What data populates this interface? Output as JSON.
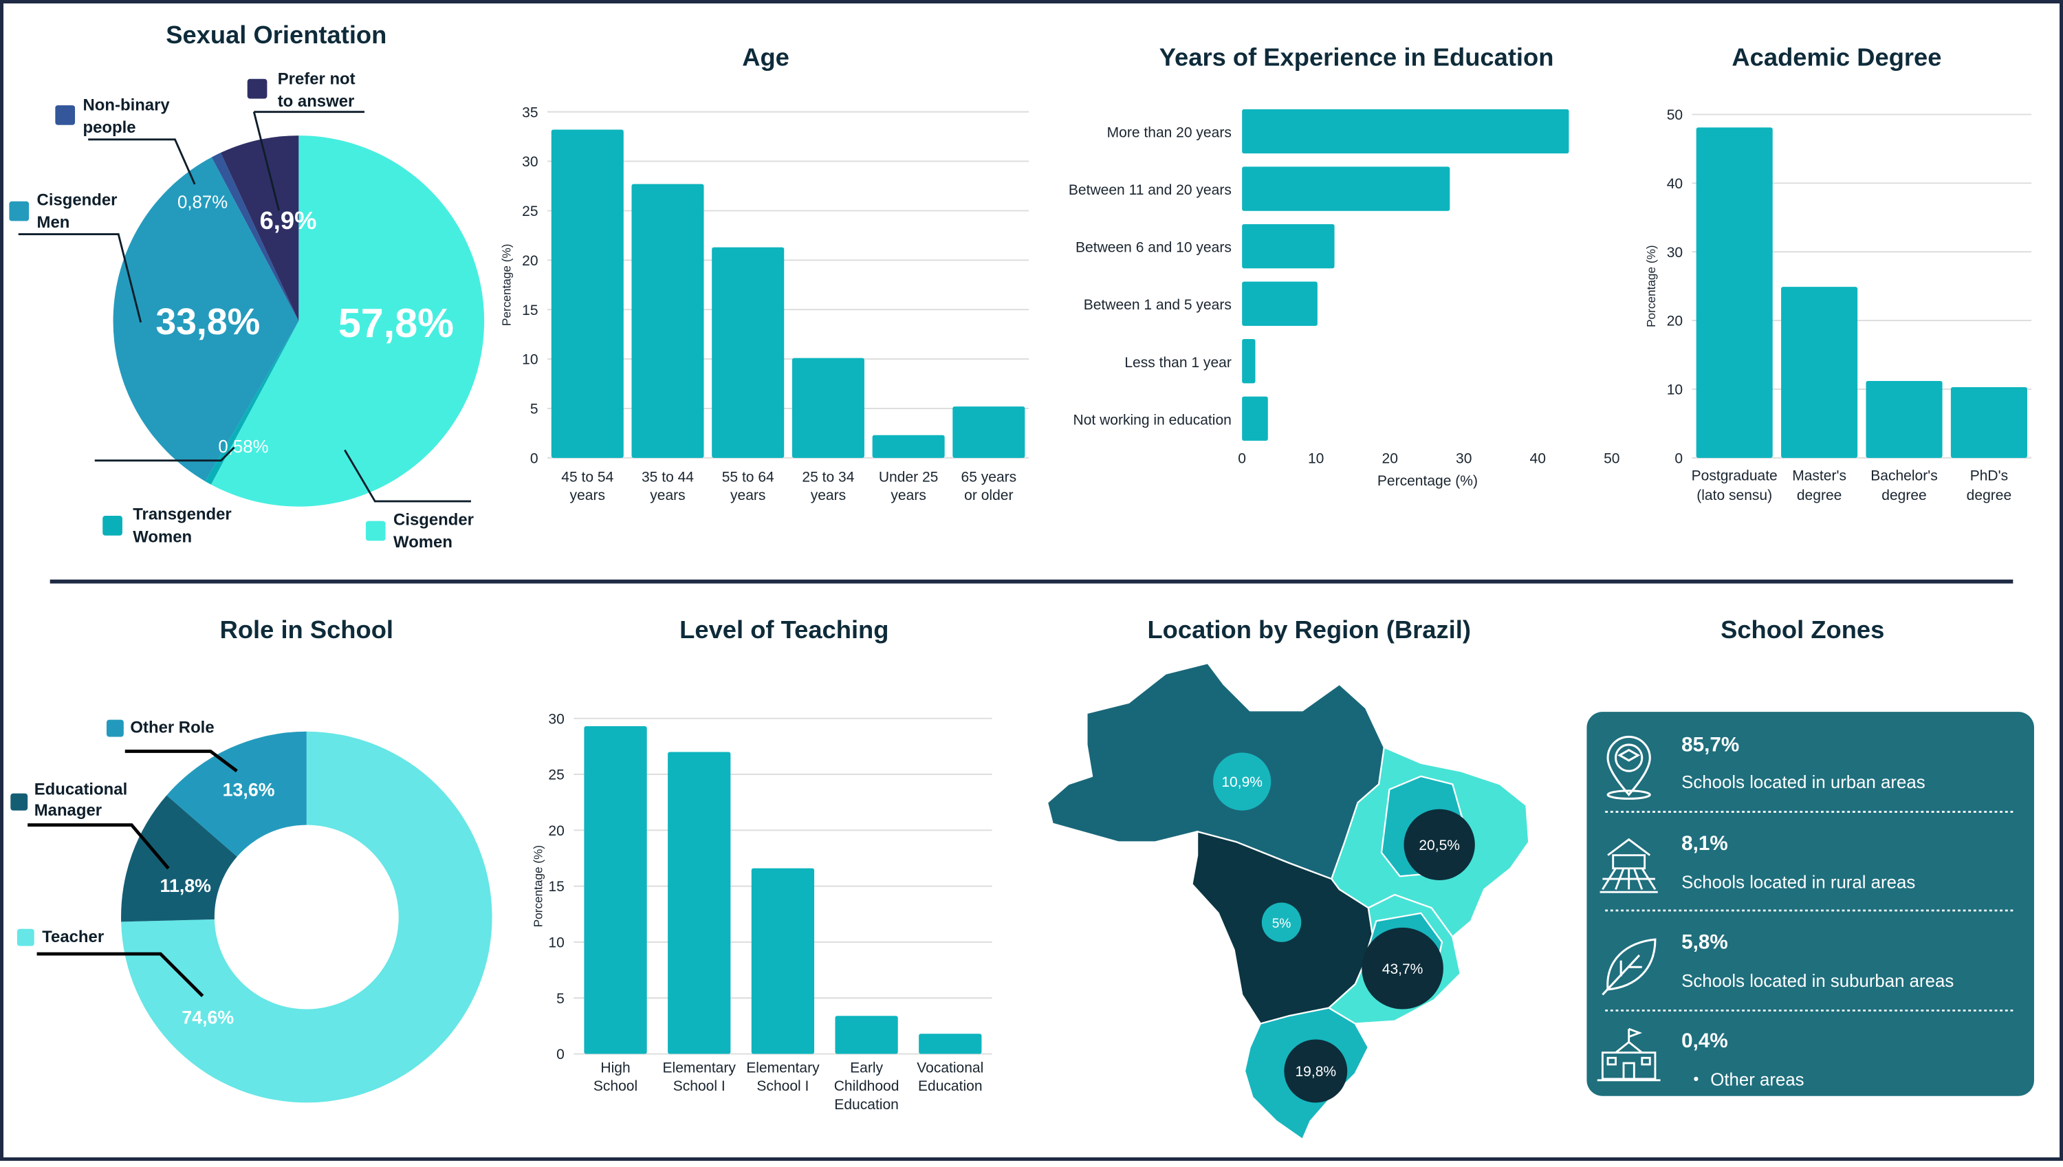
{
  "colors": {
    "bar": "#0db4bd",
    "pie_cis_women": "#46eee0",
    "pie_cis_men": "#249bbd",
    "pie_prefer_not": "#2f2f66",
    "pie_nonbinary": "#33579a",
    "pie_trans_women": "#0ab0b9",
    "donut_teacher": "#66e6e6",
    "donut_manager": "#145e74",
    "donut_other": "#239abd",
    "map_dark": "#0b3542",
    "map_mid": "#186778",
    "map_light": "#47e3d6",
    "map_teal": "#17b6bd",
    "bubble": "#0d2d3a",
    "zones_bg": "#1f6f7d",
    "divider": "#1f2a44"
  },
  "chart_data": [
    {
      "id": "sexual_orientation",
      "type": "pie",
      "title": "Sexual Orientation",
      "slices": [
        {
          "label": "Cisgender Women",
          "value": 57.8,
          "display": "57,8%"
        },
        {
          "label": "Transgender Women",
          "value": 0.58,
          "display": "0,58%"
        },
        {
          "label": "Cisgender Men",
          "value": 33.8,
          "display": "33,8%"
        },
        {
          "label": "Non-binary people",
          "value": 0.87,
          "display": "0,87%"
        },
        {
          "label": "Prefer not to answer",
          "value": 6.9,
          "display": "6,9%"
        }
      ],
      "legend": [
        {
          "line1": "Prefer not",
          "line2": "to answer"
        },
        {
          "line1": "Non-binary",
          "line2": "people"
        },
        {
          "line1": "Cisgender",
          "line2": "Men"
        },
        {
          "line1": "Transgender",
          "line2": "Women"
        },
        {
          "line1": "Cisgender",
          "line2": "Women"
        }
      ]
    },
    {
      "id": "age",
      "type": "bar",
      "title": "Age",
      "ylabel": "Percentage (%)",
      "ylim": [
        0,
        35
      ],
      "yticks": [
        0,
        5,
        10,
        15,
        20,
        25,
        30,
        35
      ],
      "categories": [
        [
          "45 to 54",
          "years"
        ],
        [
          "35 to 44",
          "years"
        ],
        [
          "55 to 64",
          "years"
        ],
        [
          "25 to 34",
          "years"
        ],
        [
          "Under 25",
          "years"
        ],
        [
          "65 years",
          "or older"
        ]
      ],
      "values": [
        33.2,
        27.7,
        21.3,
        10.1,
        2.3,
        5.2
      ]
    },
    {
      "id": "experience",
      "type": "bar",
      "orientation": "horizontal",
      "title": "Years of Experience in Education",
      "xlabel": "Percentage (%)",
      "xlim": [
        0,
        50
      ],
      "xticks": [
        0,
        10,
        20,
        30,
        40,
        50
      ],
      "categories": [
        "More than 20 years",
        "Between 11 and 20 years",
        "Between 6 and 10 years",
        "Between 1 and 5 years",
        "Less than 1 year",
        "Not working in education"
      ],
      "values": [
        44.2,
        28.1,
        12.5,
        10.2,
        1.8,
        3.5
      ]
    },
    {
      "id": "academic_degree",
      "type": "bar",
      "title": "Academic Degree",
      "ylabel": "Porcentage (%)",
      "ylim": [
        0,
        50
      ],
      "yticks": [
        0,
        10,
        20,
        30,
        40,
        50
      ],
      "categories": [
        [
          "Postgraduate",
          "(lato sensu)"
        ],
        [
          "Master's",
          "degree"
        ],
        [
          "Bachelor's",
          "degree"
        ],
        [
          "PhD's",
          "degree"
        ]
      ],
      "values": [
        48.1,
        24.9,
        11.2,
        10.3
      ]
    },
    {
      "id": "role_in_school",
      "type": "pie",
      "subtype": "donut",
      "title": "Role in School",
      "slices": [
        {
          "label": "Teacher",
          "value": 74.6,
          "display": "74,6%"
        },
        {
          "label": "Educational Manager",
          "value": 11.8,
          "display": "11,8%"
        },
        {
          "label": "Other Role",
          "value": 13.6,
          "display": "13,6%"
        }
      ],
      "legend": [
        {
          "line1": "Other Role",
          "line2": ""
        },
        {
          "line1": "Educational",
          "line2": "Manager"
        },
        {
          "line1": "Teacher",
          "line2": ""
        }
      ]
    },
    {
      "id": "level_of_teaching",
      "type": "bar",
      "title": "Level of Teaching",
      "ylabel": "Porcentage (%)",
      "ylim": [
        0,
        30
      ],
      "yticks": [
        0,
        5,
        10,
        15,
        20,
        25,
        30
      ],
      "categories": [
        [
          "High",
          "School"
        ],
        [
          "Elementary",
          "School I"
        ],
        [
          "Elementary",
          "School I"
        ],
        [
          "Early",
          "Childhood",
          "Education"
        ],
        [
          "Vocational",
          "Education"
        ]
      ],
      "values": [
        29.3,
        27.0,
        16.6,
        3.4,
        1.8
      ]
    },
    {
      "id": "region_map",
      "type": "map",
      "title": "Location by Region (Brazil)",
      "regions": [
        {
          "name": "North",
          "display": "10,9%",
          "value": 10.9
        },
        {
          "name": "Northeast",
          "display": "20,5%",
          "value": 20.5
        },
        {
          "name": "Center-West",
          "display": "5%",
          "value": 5
        },
        {
          "name": "Southeast",
          "display": "43,7%",
          "value": 43.7
        },
        {
          "name": "South",
          "display": "19,8%",
          "value": 19.8
        }
      ]
    }
  ],
  "school_zones": {
    "title": "School Zones",
    "items": [
      {
        "pct": "85,7%",
        "text": "Schools located in urban areas",
        "icon": "urban-location-icon"
      },
      {
        "pct": "8,1%",
        "text": "Schools located in rural areas",
        "icon": "farm-icon"
      },
      {
        "pct": "5,8%",
        "text": "Schools located in suburban areas",
        "icon": "leaf-icon"
      },
      {
        "pct": "0,4%",
        "text": "Other areas",
        "bullet": "•",
        "icon": "school-building-icon"
      }
    ]
  }
}
